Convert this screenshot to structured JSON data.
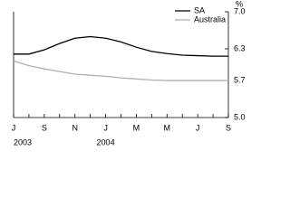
{
  "chart_data": {
    "type": "line",
    "y_unit_label": "%",
    "categories": [
      "J",
      null,
      "S",
      null,
      "N",
      null,
      "J",
      null,
      "M",
      null,
      "M",
      null,
      "J",
      null,
      "S"
    ],
    "year_labels": [
      "2003",
      null,
      null,
      null,
      null,
      null,
      "2004",
      null,
      null,
      null,
      null,
      null,
      null,
      null,
      null
    ],
    "series": [
      {
        "name": "SA",
        "color": "#000000",
        "values": [
          6.2,
          6.2,
          6.28,
          6.4,
          6.5,
          6.53,
          6.5,
          6.43,
          6.33,
          6.25,
          6.21,
          6.18,
          6.17,
          6.16,
          6.16
        ]
      },
      {
        "name": "Australia",
        "color": "#b0b0b0",
        "values": [
          6.07,
          5.98,
          5.92,
          5.87,
          5.82,
          5.8,
          5.78,
          5.75,
          5.73,
          5.71,
          5.7,
          5.7,
          5.7,
          5.7,
          5.7
        ]
      }
    ],
    "ylim": [
      5,
      7
    ],
    "yticks": [
      {
        "value": 5,
        "label": "5.0"
      },
      5.7,
      6.3,
      {
        "value": 7,
        "label": "7.0"
      }
    ]
  }
}
